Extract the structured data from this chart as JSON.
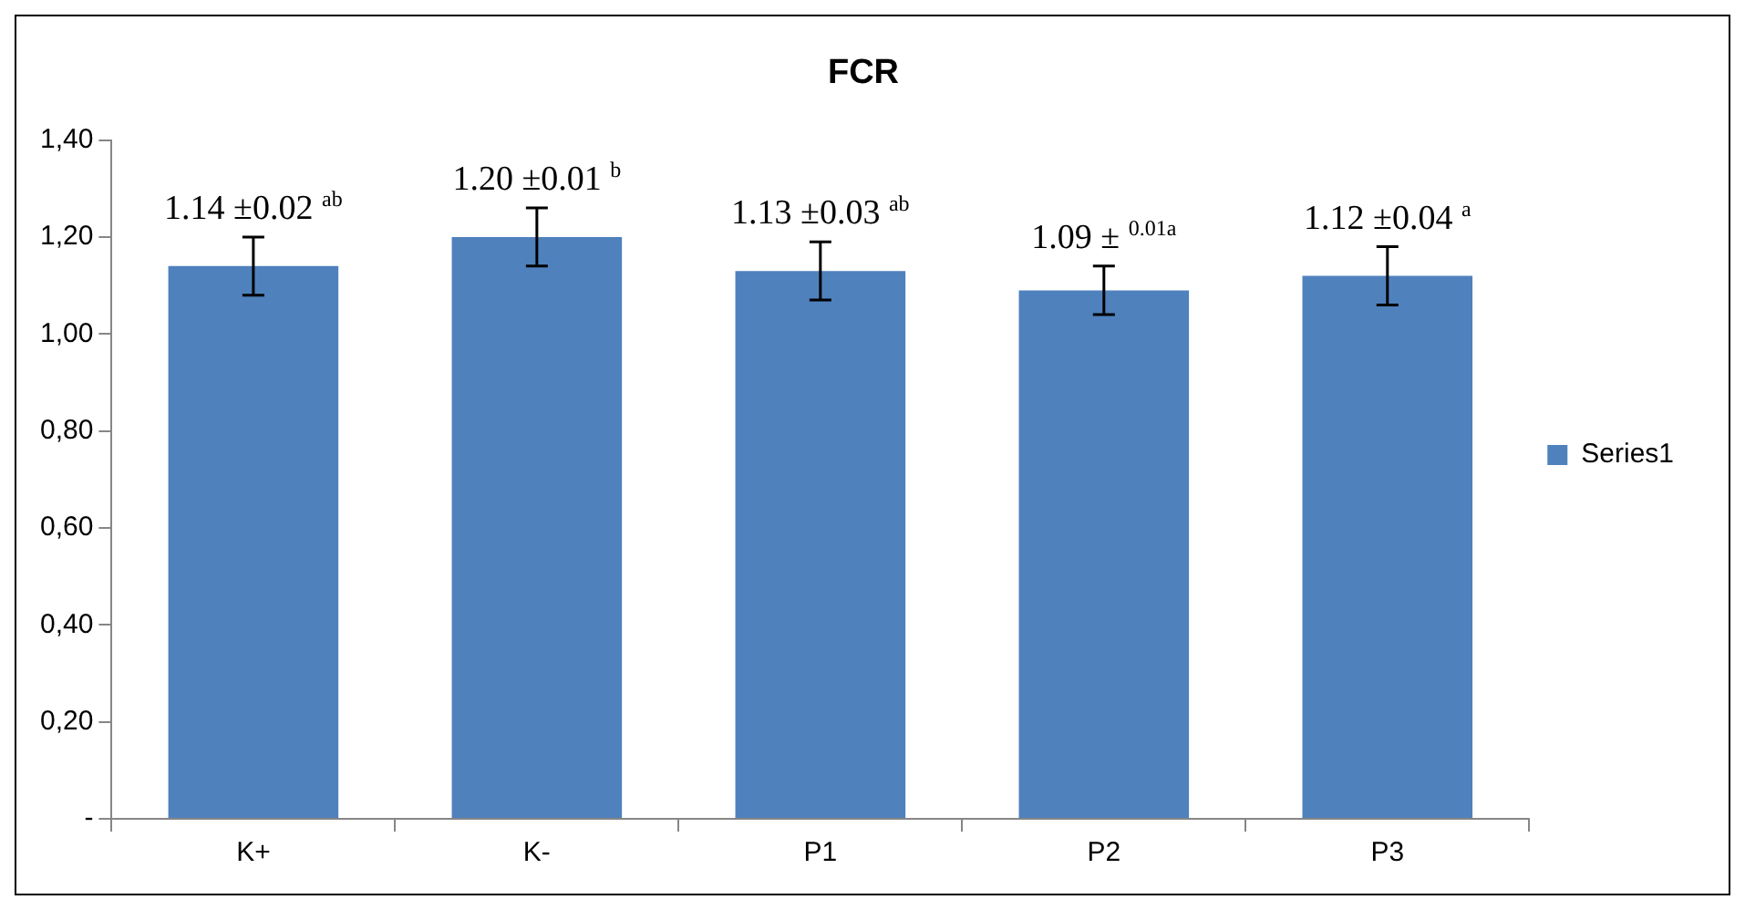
{
  "chart_data": {
    "type": "bar",
    "title": "FCR",
    "categories": [
      "K+",
      "K-",
      "P1",
      "P2",
      "P3"
    ],
    "series": [
      {
        "name": "Series1",
        "color": "#4f81bd",
        "values": [
          1.14,
          1.2,
          1.13,
          1.09,
          1.12
        ],
        "errors": [
          0.06,
          0.06,
          0.06,
          0.05,
          0.06
        ],
        "value_labels": [
          "1.14 ±0.02 $^{ab}$",
          "1.20 ±0.01 $^{b}$",
          "1.13 ±0.03 $^{ab}$",
          "1.09 ± $^{0.01a}$",
          "1.12 ±0.04 $^{a}$"
        ]
      }
    ],
    "ylim": [
      0,
      1.4
    ],
    "yticks": [
      {
        "value": 0,
        "label": "-"
      },
      {
        "value": 0.2,
        "label": "0,20"
      },
      {
        "value": 0.4,
        "label": "0,40"
      },
      {
        "value": 0.6,
        "label": "0,60"
      },
      {
        "value": 0.8,
        "label": "0,80"
      },
      {
        "value": 1.0,
        "label": "1,00"
      },
      {
        "value": 1.2,
        "label": "1,20"
      },
      {
        "value": 1.4,
        "label": "1,40"
      }
    ],
    "grid": false,
    "legend": "right"
  }
}
